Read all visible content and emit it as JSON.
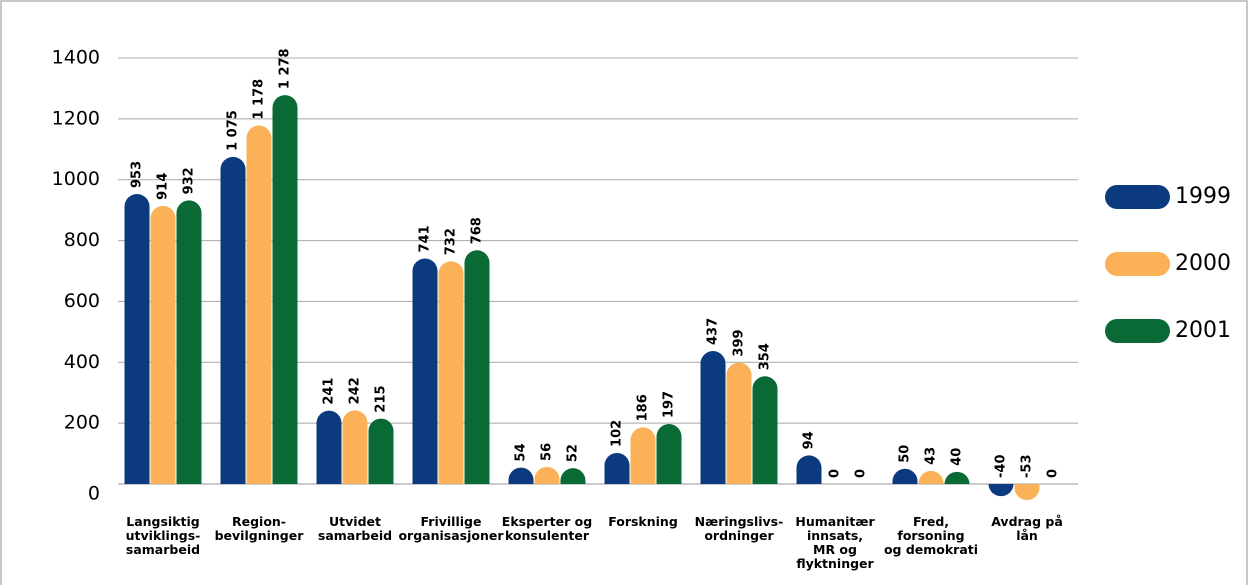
{
  "chart_data": {
    "type": "bar",
    "categories": [
      [
        "Langsiktig",
        "utviklings-",
        "samarbeid"
      ],
      [
        "Region-",
        "bevilgninger"
      ],
      [
        "Utvidet",
        "samarbeid"
      ],
      [
        "Frivillige",
        "organisasjoner"
      ],
      [
        "Eksperter og",
        "konsulenter"
      ],
      [
        "Forskning"
      ],
      [
        "Næringslivs-",
        "ordninger"
      ],
      [
        "Humanitær",
        "innsats,",
        "MR og",
        "flyktninger"
      ],
      [
        "Fred,",
        "forsoning",
        "og demokrati"
      ],
      [
        "Avdrag på",
        "lån"
      ]
    ],
    "series": [
      {
        "name": "1999",
        "color": "#0b3a7e",
        "values": [
          953,
          1075,
          241,
          741,
          54,
          102,
          437,
          94,
          50,
          -40
        ],
        "value_labels": [
          "953",
          "1 075",
          "241",
          "741",
          "54",
          "102",
          "437",
          "94",
          "50",
          "-40"
        ]
      },
      {
        "name": "2000",
        "color": "#fbb157",
        "values": [
          914,
          1178,
          242,
          732,
          56,
          186,
          399,
          0,
          43,
          -53
        ],
        "value_labels": [
          "914",
          "1 178",
          "242",
          "732",
          "56",
          "186",
          "399",
          "0",
          "43",
          "-53"
        ]
      },
      {
        "name": "2001",
        "color": "#0a6a35",
        "values": [
          932,
          1278,
          215,
          768,
          52,
          197,
          354,
          0,
          40,
          0
        ],
        "value_labels": [
          "932",
          "1 278",
          "215",
          "768",
          "52",
          "197",
          "354",
          "0",
          "40",
          "0"
        ]
      }
    ],
    "ylim": [
      0,
      1400
    ],
    "yticks": [
      0,
      200,
      400,
      600,
      800,
      1000,
      1200,
      1400
    ],
    "grid": true,
    "legend": "right"
  }
}
